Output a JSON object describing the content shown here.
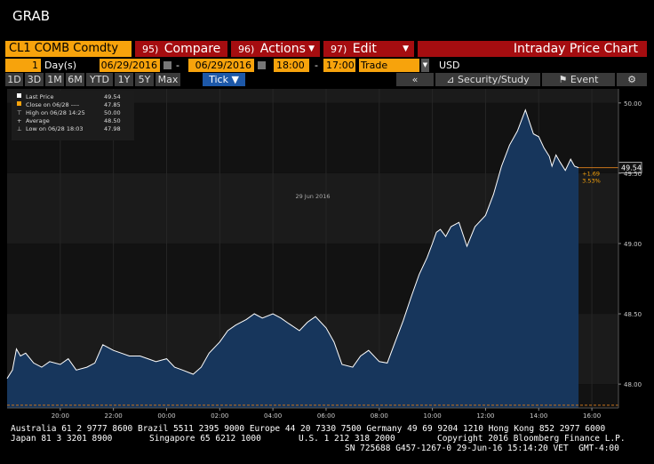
{
  "app": {
    "title": "GRAB"
  },
  "toolbar": {
    "ticker": "CL1 COMB Comdty",
    "compare": {
      "num": "95)",
      "label": "Compare"
    },
    "actions": {
      "num": "96)",
      "label": "Actions"
    },
    "edit": {
      "num": "97)",
      "label": "Edit"
    },
    "chart_title": "Intraday Price Chart"
  },
  "range": {
    "period_value": "1",
    "period_unit": "Day(s)",
    "start_date": "06/29/2016",
    "end_date": "06/29/2016",
    "start_time": "18:00",
    "end_time": "17:00",
    "field": "Trade",
    "currency": "USD"
  },
  "periods": [
    "1D",
    "3D",
    "1M",
    "6M",
    "YTD",
    "1Y",
    "5Y",
    "Max"
  ],
  "tick_label": "Tick",
  "tools": {
    "security_study": "Security/Study",
    "event": "Event"
  },
  "legend": {
    "items": [
      {
        "label": "Last Price",
        "value": "49.54"
      },
      {
        "label": "Close on 06/28 ----",
        "value": "47.85"
      },
      {
        "label": "High on 06/28 14:25",
        "value": "50.00"
      },
      {
        "label": "Average",
        "value": "48.50"
      },
      {
        "label": "Low on 06/28 18:03",
        "value": "47.98"
      }
    ]
  },
  "colors": {
    "accent": "#f7a30c",
    "button": "#a50d10",
    "area": "#17365c",
    "line": "#ffffff",
    "close_line": "#c8741c"
  },
  "chart_data": {
    "type": "area",
    "date_label": "29 Jun 2016",
    "x_ticks": [
      "20:00",
      "22:00",
      "00:00",
      "02:00",
      "04:00",
      "06:00",
      "08:00",
      "10:00",
      "12:00",
      "14:00",
      "16:00"
    ],
    "y_ticks": [
      "48.00",
      "48.50",
      "49.00",
      "49.50",
      "50.00"
    ],
    "ylim": [
      47.83,
      50.1
    ],
    "xlim": [
      18.0,
      41.0
    ],
    "last_price_label": "49.54",
    "change_label": "+1.69",
    "change_pct_label": "3.53%",
    "close_reference": 47.85,
    "series": [
      {
        "x": [
          18.0,
          18.2,
          18.35,
          18.5,
          18.7,
          19.0,
          19.3,
          19.6,
          20.0,
          20.3,
          20.6,
          21.0,
          21.3,
          21.6,
          22.0,
          22.3,
          22.6,
          23.0,
          23.3,
          23.6,
          24.0,
          24.3,
          24.6,
          25.0,
          25.3,
          25.6,
          26.0,
          26.3,
          26.6,
          27.0,
          27.3,
          27.6,
          28.0,
          28.3,
          28.6,
          29.0,
          29.3,
          29.6,
          30.0,
          30.3,
          30.6,
          31.0,
          31.3,
          31.6,
          32.0,
          32.3,
          32.6,
          32.9,
          33.2,
          33.5,
          33.8,
          34.0,
          34.15,
          34.3,
          34.5,
          34.7,
          35.0,
          35.3,
          35.6,
          36.0,
          36.3,
          36.6,
          36.9,
          37.2,
          37.5,
          37.8,
          38.0,
          38.2,
          38.4,
          38.5,
          38.65,
          38.8,
          39.0,
          39.2,
          39.35,
          39.5
        ],
        "values": [
          48.04,
          48.1,
          48.25,
          48.2,
          48.22,
          48.15,
          48.12,
          48.16,
          48.14,
          48.18,
          48.1,
          48.12,
          48.15,
          48.28,
          48.24,
          48.22,
          48.2,
          48.2,
          48.18,
          48.16,
          48.18,
          48.12,
          48.1,
          48.07,
          48.12,
          48.22,
          48.3,
          48.38,
          48.42,
          48.46,
          48.5,
          48.47,
          48.5,
          48.47,
          48.43,
          48.38,
          48.44,
          48.48,
          48.4,
          48.3,
          48.14,
          48.12,
          48.2,
          48.24,
          48.16,
          48.15,
          48.3,
          48.45,
          48.62,
          48.78,
          48.9,
          49.0,
          49.08,
          49.1,
          49.05,
          49.12,
          49.15,
          48.98,
          49.12,
          49.2,
          49.35,
          49.55,
          49.7,
          49.8,
          49.95,
          49.78,
          49.76,
          49.68,
          49.62,
          49.55,
          49.63,
          49.58,
          49.52,
          49.6,
          49.55,
          49.54
        ]
      }
    ]
  },
  "footer": {
    "line1": "Australia 61 2 9777 8600 Brazil 5511 2395 9000 Europe 44 20 7330 7500 Germany 49 69 9204 1210 Hong Kong 852 2977 6000",
    "line2a": "Japan 81 3 3201 8900",
    "line2b": "Singapore 65 6212 1000",
    "line2c": "U.S. 1 212 318 2000",
    "line2d": "Copyright 2016 Bloomberg Finance L.P.",
    "line3": "SN 725688 G457-1267-0 29-Jun-16 15:14:20 VET  GMT-4:00"
  }
}
